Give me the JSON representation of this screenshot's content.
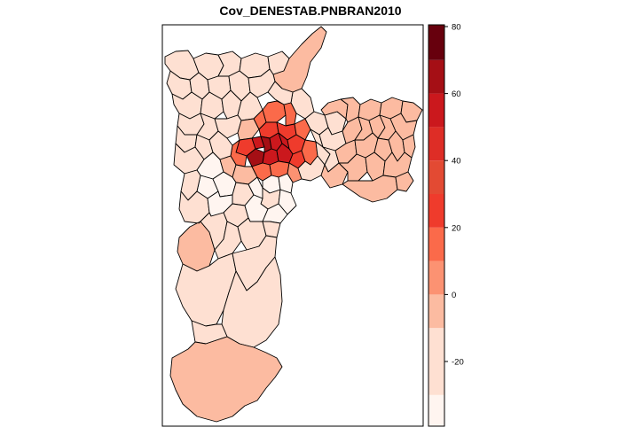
{
  "title": "Cov_DENESTAB.PNBRAN2010",
  "legend": {
    "breaks": [
      -40,
      -30,
      -10,
      0,
      10,
      20,
      30,
      40,
      50,
      60,
      70,
      80
    ],
    "colors": [
      "#fff5f0",
      "#fee0d2",
      "#fcbba1",
      "#fc9272",
      "#fb6a4a",
      "#ef3b2c",
      "#e34a33",
      "#de2d26",
      "#cb181d",
      "#a50f15",
      "#67000d"
    ],
    "tick_labels": [
      "80",
      "60",
      "40",
      "20",
      "0",
      "-20"
    ],
    "tick_values": [
      80,
      60,
      40,
      20,
      0,
      -20
    ]
  },
  "map": {
    "variable": "Cov_DENESTAB.PNBRAN2010",
    "class_colors": {
      "lightest": "#fff5f0",
      "light": "#fee0d2",
      "light_mid": "#fcbba1",
      "mid": "#fc9272",
      "mid_dark": "#fb6a4a",
      "dark": "#ef3b2c",
      "darker": "#cb181d",
      "darkest": "#a50f15"
    }
  }
}
